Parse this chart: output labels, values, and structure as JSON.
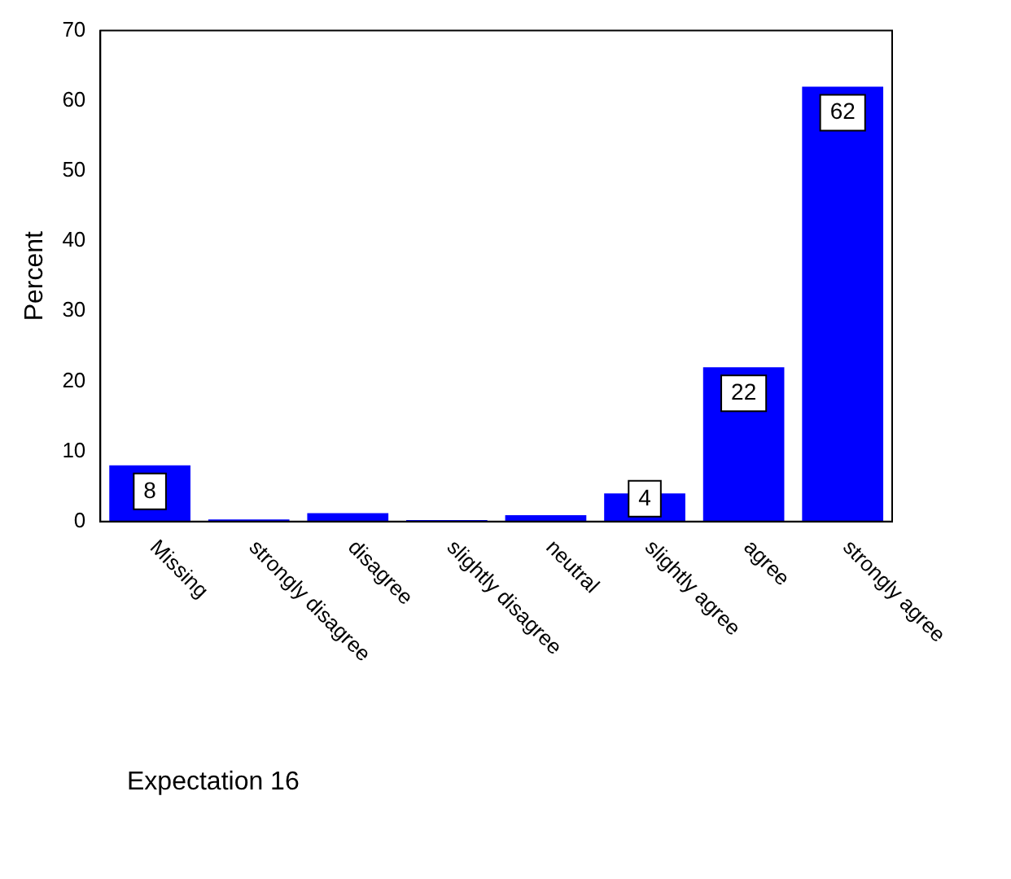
{
  "chart_data": {
    "type": "bar",
    "ylabel": "Percent",
    "categories": [
      "Missing",
      "strongly disagree",
      "disagree",
      "slightly disagree",
      "neutral",
      "slightly agree",
      "agree",
      "strongly agree"
    ],
    "values": [
      8,
      0.3,
      1.2,
      0.2,
      0.9,
      4,
      22,
      62
    ],
    "value_labels": [
      "8",
      null,
      null,
      null,
      null,
      "4",
      "22",
      "62"
    ],
    "color": "#0000ff",
    "ylim": [
      0,
      70
    ],
    "yticks": [
      0,
      10,
      20,
      30,
      40,
      50,
      60,
      70
    ],
    "grid": false,
    "legend": false,
    "annotations": [
      "Expectation 16"
    ]
  }
}
